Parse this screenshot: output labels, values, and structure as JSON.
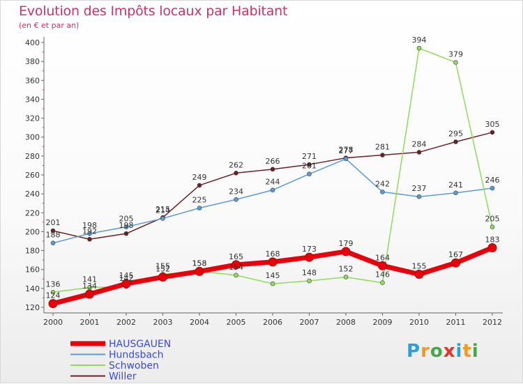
{
  "title": "Evolution des Impôts locaux par Habitant",
  "subtitle": "(en € et par an)",
  "logo": "Proxiti",
  "chart_data": {
    "type": "line",
    "title": "Evolution des Impôts locaux par Habitant",
    "subtitle": "(en € et par an)",
    "xlabel": "",
    "ylabel": "",
    "x": [
      "2000",
      "2001",
      "2002",
      "2003",
      "2004",
      "2005",
      "2006",
      "2007",
      "2008",
      "2009",
      "2010",
      "2011",
      "2012"
    ],
    "ylim": [
      120,
      400
    ],
    "yticks": [
      120,
      140,
      160,
      180,
      200,
      220,
      240,
      260,
      280,
      300,
      320,
      340,
      360,
      380,
      400
    ],
    "grid": false,
    "legend_position": "bottom-left",
    "series": [
      {
        "name": "HAUSGAUEN",
        "color": "#e8000b",
        "values": [
          124,
          134,
          145,
          152,
          158,
          165,
          168,
          173,
          179,
          164,
          155,
          167,
          183
        ]
      },
      {
        "name": "Hundsbach",
        "color": "#5b9bd5",
        "values": [
          188,
          198,
          205,
          214,
          225,
          234,
          244,
          261,
          277,
          242,
          237,
          241,
          246
        ]
      },
      {
        "name": "Schwoben",
        "color": "#8fdc5a",
        "values": [
          136,
          141,
          142,
          155,
          158,
          154,
          145,
          148,
          152,
          146,
          394,
          379,
          205
        ]
      },
      {
        "name": "Willer",
        "color": "#6b1f23",
        "values": [
          201,
          192,
          198,
          215,
          249,
          262,
          266,
          271,
          278,
          281,
          284,
          295,
          305
        ]
      }
    ]
  }
}
